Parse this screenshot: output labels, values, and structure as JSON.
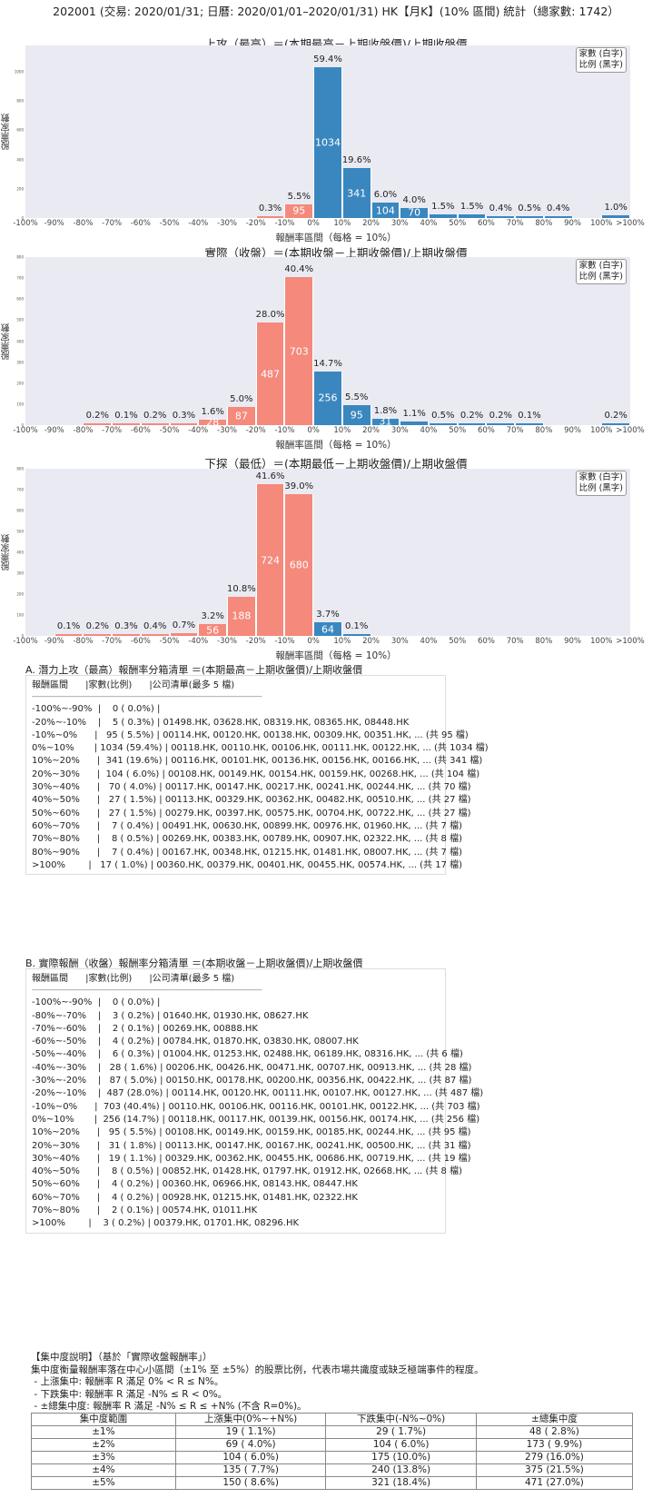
{
  "page": {
    "title": "202001 (交易: 2020/01/31; 日曆: 2020/01/01–2020/01/31) HK【月K】(10% 區間) 統計（總家數: 1742）"
  },
  "common": {
    "ylabel": "股票家數",
    "xlabel": "報酬率區間（每格 = 10%）",
    "legend_line1": "家數 (白字)",
    "legend_line2": "比例 (黑字)",
    "xticks": [
      "-100%",
      "-90%",
      "-80%",
      "-70%",
      "-60%",
      "-50%",
      "-40%",
      "-30%",
      "-20%",
      "-10%",
      "0%",
      "10%",
      "20%",
      "30%",
      "40%",
      "50%",
      "60%",
      "70%",
      "80%",
      "90%",
      "100%",
      ">100%"
    ],
    "colors": {
      "positive": "#3a87bf",
      "negative": "#f4897c",
      "plot_bg": "#eaeaf2"
    }
  },
  "chart_data": [
    {
      "type": "bar",
      "title": "上攻（最高）＝(本期最高－上期收盤價)/上期收盤價",
      "xlabel": "報酬率區間（每格 = 10%）",
      "ylabel": "股票家數",
      "ylim": [
        0,
        1180
      ],
      "yticks": [
        0,
        200,
        400,
        600,
        800,
        1000
      ],
      "grid": false,
      "legend_position": "upper right",
      "categories": [
        "-100%~-90%",
        "-90%~-80%",
        "-80%~-70%",
        "-70%~-60%",
        "-60%~-50%",
        "-50%~-40%",
        "-40%~-30%",
        "-30%~-20%",
        "-20%~-10%",
        "-10%~0%",
        "0%~10%",
        "10%~20%",
        "20%~30%",
        "30%~40%",
        "40%~50%",
        "50%~60%",
        "60%~70%",
        "70%~80%",
        "80%~90%",
        "90%~100%",
        ">100%"
      ],
      "values": [
        0,
        0,
        0,
        0,
        0,
        0,
        0,
        0,
        5,
        95,
        1034,
        341,
        104,
        70,
        27,
        27,
        7,
        8,
        7,
        0,
        17
      ],
      "percent_labels": [
        "",
        "",
        "",
        "",
        "",
        "",
        "",
        "",
        "0.3%",
        "5.5%",
        "59.4%",
        "19.6%",
        "6.0%",
        "4.0%",
        "1.5%",
        "1.5%",
        "0.4%",
        "0.5%",
        "0.4%",
        "",
        "1.0%"
      ],
      "count_labels": [
        "",
        "",
        "",
        "",
        "",
        "",
        "",
        "",
        "",
        "95",
        "1034",
        "341",
        "104",
        "70",
        "",
        "",
        "",
        "",
        "",
        "",
        ""
      ]
    },
    {
      "type": "bar",
      "title": "實際（收盤）＝(本期收盤－上期收盤價)/上期收盤價",
      "xlabel": "報酬率區間（每格 = 10%）",
      "ylabel": "股票家數",
      "ylim": [
        0,
        800
      ],
      "yticks": [
        0,
        100,
        200,
        300,
        400,
        500,
        600,
        700,
        800
      ],
      "grid": false,
      "legend_position": "upper right",
      "categories": [
        "-100%~-90%",
        "-90%~-80%",
        "-80%~-70%",
        "-70%~-60%",
        "-60%~-50%",
        "-50%~-40%",
        "-40%~-30%",
        "-30%~-20%",
        "-20%~-10%",
        "-10%~0%",
        "0%~10%",
        "10%~20%",
        "20%~30%",
        "30%~40%",
        "40%~50%",
        "50%~60%",
        "60%~70%",
        "70%~80%",
        "80%~90%",
        "90%~100%",
        ">100%"
      ],
      "values": [
        0,
        0,
        3,
        2,
        4,
        6,
        28,
        87,
        487,
        703,
        256,
        95,
        31,
        19,
        8,
        4,
        4,
        2,
        0,
        0,
        3
      ],
      "percent_labels": [
        "",
        "",
        "0.2%",
        "0.1%",
        "0.2%",
        "0.3%",
        "1.6%",
        "5.0%",
        "28.0%",
        "40.4%",
        "14.7%",
        "5.5%",
        "1.8%",
        "1.1%",
        "0.5%",
        "0.2%",
        "0.2%",
        "0.1%",
        "",
        "",
        "0.2%"
      ],
      "count_labels": [
        "",
        "",
        "",
        "",
        "",
        "",
        "28",
        "87",
        "487",
        "703",
        "256",
        "95",
        "31",
        "",
        "",
        "",
        "",
        "",
        "",
        "",
        ""
      ]
    },
    {
      "type": "bar",
      "title": "下探（最低）＝(本期最低－上期收盤價)/上期收盤價",
      "xlabel": "報酬率區間（每格 = 10%）",
      "ylabel": "股票家數",
      "ylim": [
        0,
        800
      ],
      "yticks": [
        0,
        100,
        200,
        300,
        400,
        500,
        600,
        700,
        800
      ],
      "grid": false,
      "legend_position": "upper right",
      "categories": [
        "-100%~-90%",
        "-90%~-80%",
        "-80%~-70%",
        "-70%~-60%",
        "-60%~-50%",
        "-50%~-40%",
        "-40%~-30%",
        "-30%~-20%",
        "-20%~-10%",
        "-10%~0%",
        "0%~10%",
        "10%~20%",
        "20%~30%",
        "30%~40%",
        "40%~50%",
        "50%~60%",
        "60%~70%",
        "70%~80%",
        "80%~90%",
        "90%~100%",
        ">100%"
      ],
      "values": [
        0,
        2,
        4,
        5,
        7,
        12,
        56,
        188,
        724,
        680,
        64,
        2,
        0,
        0,
        0,
        0,
        0,
        0,
        0,
        0,
        0
      ],
      "percent_labels": [
        "",
        "0.1%",
        "0.2%",
        "0.3%",
        "0.4%",
        "0.7%",
        "3.2%",
        "10.8%",
        "41.6%",
        "39.0%",
        "3.7%",
        "0.1%",
        "",
        "",
        "",
        "",
        "",
        "",
        "",
        "",
        ""
      ],
      "count_labels": [
        "",
        "",
        "",
        "",
        "",
        "",
        "56",
        "188",
        "724",
        "680",
        "64",
        "",
        "",
        "",
        "",
        "",
        "",
        "",
        "",
        "",
        ""
      ]
    }
  ],
  "list_a": {
    "title": "A. 潛力上攻（最高）報酬率分箱清單 ＝(本期最高－上期收盤價)/上期收盤價",
    "header": "報酬區間      |家數(比例)      |公司清單(最多 5 檔)",
    "separator": "-----------------------------------------------------------------------------------------------------------------------------",
    "rows": [
      "-100%~-90%  |    0 ( 0.0%) |",
      "-20%~-10%    |    5 ( 0.3%) | 01498.HK, 03628.HK, 08319.HK, 08365.HK, 08448.HK",
      "-10%~0%      |   95 ( 5.5%) | 00114.HK, 00120.HK, 00138.HK, 00309.HK, 00351.HK, ... (共 95 檔)",
      "0%~10%       | 1034 (59.4%) | 00118.HK, 00110.HK, 00106.HK, 00111.HK, 00122.HK, ... (共 1034 檔)",
      "10%~20%      |  341 (19.6%) | 00116.HK, 00101.HK, 00136.HK, 00156.HK, 00166.HK, ... (共 341 檔)",
      "20%~30%      |  104 ( 6.0%) | 00108.HK, 00149.HK, 00154.HK, 00159.HK, 00268.HK, ... (共 104 檔)",
      "30%~40%      |   70 ( 4.0%) | 00117.HK, 00147.HK, 00217.HK, 00241.HK, 00244.HK, ... (共 70 檔)",
      "40%~50%      |   27 ( 1.5%) | 00113.HK, 00329.HK, 00362.HK, 00482.HK, 00510.HK, ... (共 27 檔)",
      "50%~60%      |   27 ( 1.5%) | 00279.HK, 00397.HK, 00575.HK, 00704.HK, 00722.HK, ... (共 27 檔)",
      "60%~70%      |    7 ( 0.4%) | 00491.HK, 00630.HK, 00899.HK, 00976.HK, 01960.HK, ... (共 7 檔)",
      "70%~80%      |    8 ( 0.5%) | 00269.HK, 00383.HK, 00789.HK, 00907.HK, 02322.HK, ... (共 8 檔)",
      "80%~90%      |    7 ( 0.4%) | 00167.HK, 00348.HK, 01215.HK, 01481.HK, 08007.HK, ... (共 7 檔)",
      ">100%        |   17 ( 1.0%) | 00360.HK, 00379.HK, 00401.HK, 00455.HK, 00574.HK, ... (共 17 檔)"
    ]
  },
  "list_b": {
    "title": "B. 實際報酬（收盤）報酬率分箱清單 ＝(本期收盤－上期收盤價)/上期收盤價",
    "header": "報酬區間      |家數(比例)      |公司清單(最多 5 檔)",
    "separator": "-----------------------------------------------------------------------------------------------------------------------------",
    "rows": [
      "-100%~-90%  |    0 ( 0.0%) |",
      "-80%~-70%    |    3 ( 0.2%) | 01640.HK, 01930.HK, 08627.HK",
      "-70%~-60%    |    2 ( 0.1%) | 00269.HK, 00888.HK",
      "-60%~-50%    |    4 ( 0.2%) | 00784.HK, 01870.HK, 03830.HK, 08007.HK",
      "-50%~-40%    |    6 ( 0.3%) | 01004.HK, 01253.HK, 02488.HK, 06189.HK, 08316.HK, ... (共 6 檔)",
      "-40%~-30%    |   28 ( 1.6%) | 00206.HK, 00426.HK, 00471.HK, 00707.HK, 00913.HK, ... (共 28 檔)",
      "-30%~-20%    |   87 ( 5.0%) | 00150.HK, 00178.HK, 00200.HK, 00356.HK, 00422.HK, ... (共 87 檔)",
      "-20%~-10%    |  487 (28.0%) | 00114.HK, 00120.HK, 00111.HK, 00107.HK, 00127.HK, ... (共 487 檔)",
      "-10%~0%      |  703 (40.4%) | 00110.HK, 00106.HK, 00116.HK, 00101.HK, 00122.HK, ... (共 703 檔)",
      "0%~10%       |  256 (14.7%) | 00118.HK, 00117.HK, 00139.HK, 00156.HK, 00174.HK, ... (共 256 檔)",
      "10%~20%      |   95 ( 5.5%) | 00108.HK, 00149.HK, 00159.HK, 00185.HK, 00244.HK, ... (共 95 檔)",
      "20%~30%      |   31 ( 1.8%) | 00113.HK, 00147.HK, 00167.HK, 00241.HK, 00500.HK, ... (共 31 檔)",
      "30%~40%      |   19 ( 1.1%) | 00329.HK, 00362.HK, 00455.HK, 00686.HK, 00719.HK, ... (共 19 檔)",
      "40%~50%      |    8 ( 0.5%) | 00852.HK, 01428.HK, 01797.HK, 01912.HK, 02668.HK, ... (共 8 檔)",
      "50%~60%      |    4 ( 0.2%) | 00360.HK, 06966.HK, 08143.HK, 08447.HK",
      "60%~70%      |    4 ( 0.2%) | 00928.HK, 01215.HK, 01481.HK, 02322.HK",
      "70%~80%      |    2 ( 0.1%) | 00574.HK, 01011.HK",
      ">100%        |    3 ( 0.2%) | 00379.HK, 01701.HK, 08296.HK"
    ]
  },
  "concentration": {
    "heading": "【集中度說明】（基於「實際收盤報酬率」）",
    "description": "集中度衡量報酬率落在中心小區間（±1% 至 ±5%）的股票比例，代表市場共識度或缺乏極端事件的程度。",
    "rule_up": " - 上漲集中: 報酬率 R 滿足 0% < R ≤ N%。",
    "rule_down": " - 下跌集中: 報酬率 R 滿足 -N% ≤ R < 0%。",
    "rule_total": " - ±總集中度: 報酬率 R 滿足 -N% ≤ R ≤ +N% (不含 R=0%)。",
    "table": {
      "headers": [
        "集中度範圍",
        "上漲集中(0%~+N%)",
        "下跌集中(-N%~0%)",
        "±總集中度"
      ],
      "rows": [
        [
          "±1%",
          "19 ( 1.1%)",
          "29 ( 1.7%)",
          "48 ( 2.8%)"
        ],
        [
          "±2%",
          "69 ( 4.0%)",
          "104 ( 6.0%)",
          "173 ( 9.9%)"
        ],
        [
          "±3%",
          "104 ( 6.0%)",
          "175 (10.0%)",
          "279 (16.0%)"
        ],
        [
          "±4%",
          "135 ( 7.7%)",
          "240 (13.8%)",
          "375 (21.5%)"
        ],
        [
          "±5%",
          "150 ( 8.6%)",
          "321 (18.4%)",
          "471 (27.0%)"
        ]
      ]
    }
  }
}
